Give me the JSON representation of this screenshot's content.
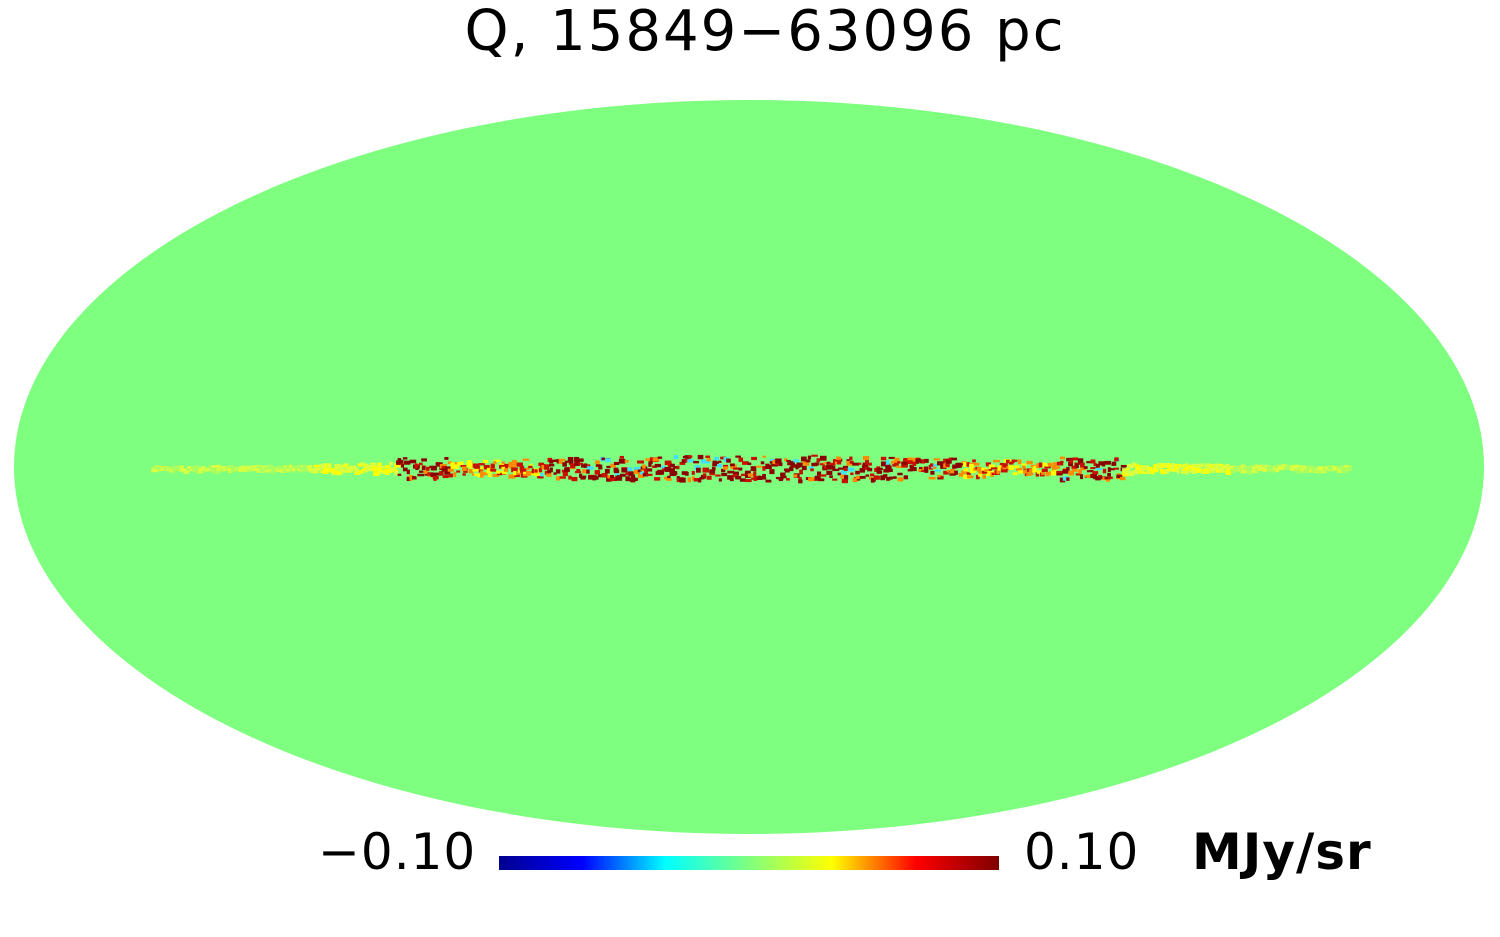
{
  "chart_data": {
    "type": "heatmap",
    "projection": "mollweide",
    "title": "Q, 15849−63096 pc",
    "colorbar": {
      "min_label": "−0.10",
      "max_label": "0.10",
      "unit": "MJy/sr",
      "range": [
        -0.1,
        0.1
      ],
      "colormap": [
        "#00008f",
        "#0000ff",
        "#00ffff",
        "#7fff7f",
        "#ffff00",
        "#ff0000",
        "#7f0000"
      ]
    },
    "background_value": 0.0,
    "features": [
      {
        "name": "galactic-plane-emission",
        "latitude_deg": 0,
        "longitude_range_deg": [
          -150,
          150
        ],
        "peak_value": 0.1
      }
    ]
  }
}
